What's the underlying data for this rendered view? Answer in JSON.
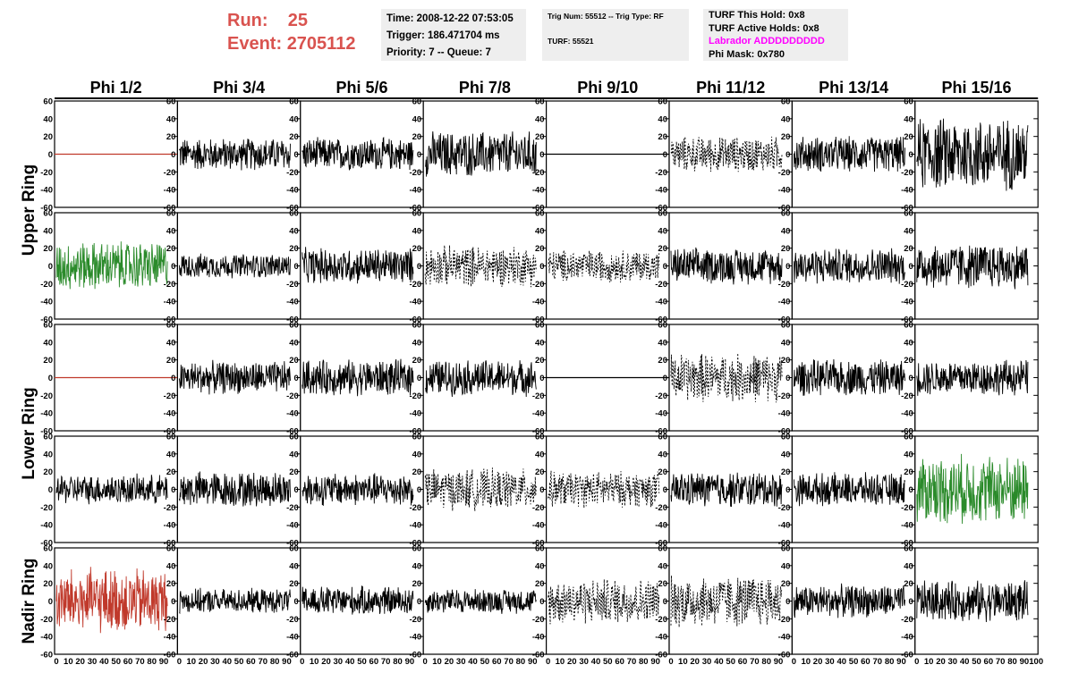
{
  "header": {
    "run_label": "Run:",
    "run_value": "25",
    "event_label": "Event:",
    "event_value": "2705112"
  },
  "time_box": {
    "time": "Time: 2008-12-22 07:53:05",
    "trigger": "Trigger: 186.471704 ms",
    "priority": "Priority: 7 -- Queue: 7"
  },
  "trig_box": {
    "line1": "Trig Num: 55512 -- Trig Type: RF",
    "line2": "TURF: 55521"
  },
  "turf_box": {
    "this_hold": "TURF This Hold: 0x8",
    "active_holds": "TURF Active Holds: 0x8",
    "labrador": "Labrador ADDDDDDDDD",
    "phi_mask": "Phi Mask: 0x780",
    "labrador_color": "#ff00ff"
  },
  "chart_data": {
    "type": "line",
    "columns": [
      "Phi 1/2",
      "Phi 3/4",
      "Phi 5/6",
      "Phi 7/8",
      "Phi 9/10",
      "Phi 11/12",
      "Phi 13/14",
      "Phi 15/16"
    ],
    "ring_labels": [
      "Upper Ring",
      "Lower Ring",
      "Nadir Ring"
    ],
    "rows": 5,
    "xlim": [
      0,
      100
    ],
    "ylim": [
      -60,
      60
    ],
    "xticks": [
      0,
      10,
      20,
      30,
      40,
      50,
      60,
      70,
      80,
      90,
      100
    ],
    "yticks": [
      -60,
      -40,
      -20,
      0,
      20,
      40,
      60
    ],
    "colors": {
      "normal": "#000000",
      "green": "#2a8a2a",
      "red": "#c0392b",
      "flat_red": "#c0392b"
    },
    "panels": [
      [
        "flat_red",
        "solid",
        "solid",
        "solid",
        "flat_black",
        "dashed",
        "solid",
        "solid"
      ],
      [
        "green",
        "solid",
        "solid",
        "dashed",
        "dashed",
        "solid",
        "solid",
        "solid"
      ],
      [
        "flat_red",
        "solid",
        "solid",
        "solid",
        "flat_black",
        "dashed",
        "solid",
        "solid"
      ],
      [
        "solid",
        "solid",
        "solid",
        "dashed",
        "dashed",
        "solid",
        "solid",
        "green"
      ],
      [
        "red",
        "solid",
        "solid",
        "solid",
        "dashed",
        "dashed",
        "solid",
        "solid"
      ]
    ],
    "amplitudes": [
      [
        0,
        20,
        20,
        28,
        0,
        22,
        22,
        45
      ],
      [
        30,
        15,
        22,
        25,
        20,
        22,
        22,
        28
      ],
      [
        0,
        20,
        22,
        22,
        0,
        30,
        22,
        22
      ],
      [
        18,
        22,
        20,
        25,
        22,
        22,
        20,
        42
      ],
      [
        40,
        15,
        18,
        15,
        28,
        32,
        20,
        25
      ]
    ]
  }
}
